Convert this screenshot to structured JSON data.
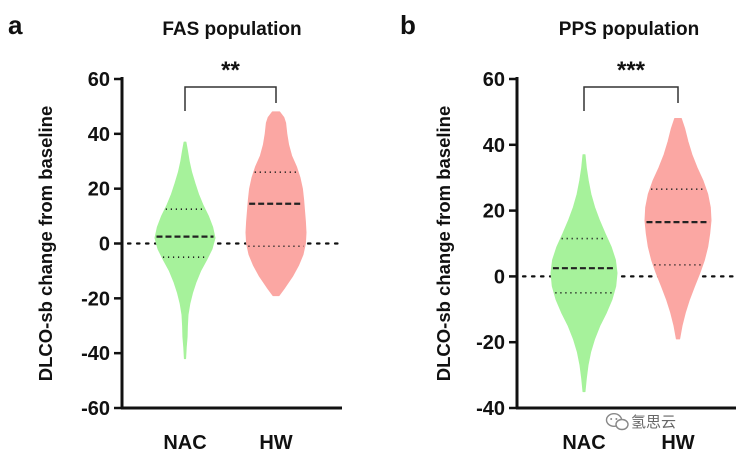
{
  "chart_data": [
    {
      "type": "violin",
      "panel_label": "a",
      "title": "FAS population",
      "ylabel": "DLCO-sb change from baseline",
      "ylim": [
        -60,
        60
      ],
      "yticks": [
        -60,
        -40,
        -20,
        0,
        20,
        40,
        60
      ],
      "reference_line": 0,
      "significance": {
        "between": [
          "NAC",
          "HW"
        ],
        "label": "**"
      },
      "series": [
        {
          "name": "NAC",
          "color": "#a6f29b",
          "min": -42,
          "max": 37,
          "q1": -5,
          "median": 2.5,
          "q3": 12.5,
          "density_profile": [
            [
              -42,
              0.02
            ],
            [
              -38,
              0.04
            ],
            [
              -34,
              0.07
            ],
            [
              -30,
              0.08
            ],
            [
              -26,
              0.1
            ],
            [
              -22,
              0.16
            ],
            [
              -18,
              0.25
            ],
            [
              -14,
              0.37
            ],
            [
              -10,
              0.52
            ],
            [
              -6,
              0.72
            ],
            [
              -2,
              0.9
            ],
            [
              2,
              1.0
            ],
            [
              6,
              0.92
            ],
            [
              10,
              0.78
            ],
            [
              14,
              0.6
            ],
            [
              18,
              0.45
            ],
            [
              22,
              0.33
            ],
            [
              26,
              0.22
            ],
            [
              30,
              0.14
            ],
            [
              34,
              0.08
            ],
            [
              37,
              0.03
            ]
          ]
        },
        {
          "name": "HW",
          "color": "#fba7a3",
          "min": -19,
          "max": 48,
          "q1": -1,
          "median": 14.5,
          "q3": 26,
          "density_profile": [
            [
              -19,
              0.1
            ],
            [
              -16,
              0.3
            ],
            [
              -12,
              0.55
            ],
            [
              -8,
              0.75
            ],
            [
              -4,
              0.9
            ],
            [
              0,
              0.98
            ],
            [
              4,
              1.0
            ],
            [
              8,
              0.98
            ],
            [
              12,
              0.95
            ],
            [
              16,
              0.92
            ],
            [
              20,
              0.88
            ],
            [
              24,
              0.8
            ],
            [
              28,
              0.68
            ],
            [
              32,
              0.52
            ],
            [
              36,
              0.42
            ],
            [
              40,
              0.36
            ],
            [
              44,
              0.32
            ],
            [
              46,
              0.26
            ],
            [
              48,
              0.12
            ]
          ]
        }
      ]
    },
    {
      "type": "violin",
      "panel_label": "b",
      "title": "PPS population",
      "ylabel": "DLCO-sb change from baseline",
      "ylim": [
        -40,
        60
      ],
      "yticks": [
        -40,
        -20,
        0,
        20,
        40,
        60
      ],
      "reference_line": 0,
      "significance": {
        "between": [
          "NAC",
          "HW"
        ],
        "label": "***"
      },
      "series": [
        {
          "name": "NAC",
          "color": "#a6f29b",
          "min": -35,
          "max": 37,
          "q1": -5,
          "median": 2.5,
          "q3": 11.5,
          "density_profile": [
            [
              -35,
              0.03
            ],
            [
              -31,
              0.07
            ],
            [
              -27,
              0.12
            ],
            [
              -23,
              0.2
            ],
            [
              -19,
              0.32
            ],
            [
              -15,
              0.48
            ],
            [
              -11,
              0.68
            ],
            [
              -7,
              0.85
            ],
            [
              -3,
              0.96
            ],
            [
              1,
              1.0
            ],
            [
              5,
              0.95
            ],
            [
              9,
              0.82
            ],
            [
              13,
              0.64
            ],
            [
              17,
              0.47
            ],
            [
              21,
              0.32
            ],
            [
              25,
              0.21
            ],
            [
              29,
              0.13
            ],
            [
              33,
              0.07
            ],
            [
              37,
              0.03
            ]
          ]
        },
        {
          "name": "HW",
          "color": "#fba7a3",
          "min": -19,
          "max": 48,
          "q1": 3.5,
          "median": 16.5,
          "q3": 26.5,
          "density_profile": [
            [
              -19,
              0.05
            ],
            [
              -15,
              0.12
            ],
            [
              -11,
              0.22
            ],
            [
              -7,
              0.35
            ],
            [
              -3,
              0.5
            ],
            [
              1,
              0.66
            ],
            [
              5,
              0.8
            ],
            [
              9,
              0.9
            ],
            [
              13,
              0.96
            ],
            [
              17,
              1.0
            ],
            [
              21,
              0.98
            ],
            [
              25,
              0.9
            ],
            [
              29,
              0.76
            ],
            [
              33,
              0.58
            ],
            [
              37,
              0.42
            ],
            [
              41,
              0.3
            ],
            [
              45,
              0.2
            ],
            [
              48,
              0.1
            ]
          ]
        }
      ]
    }
  ],
  "watermark": {
    "icon": "wechat-icon",
    "text": "氢思云"
  }
}
